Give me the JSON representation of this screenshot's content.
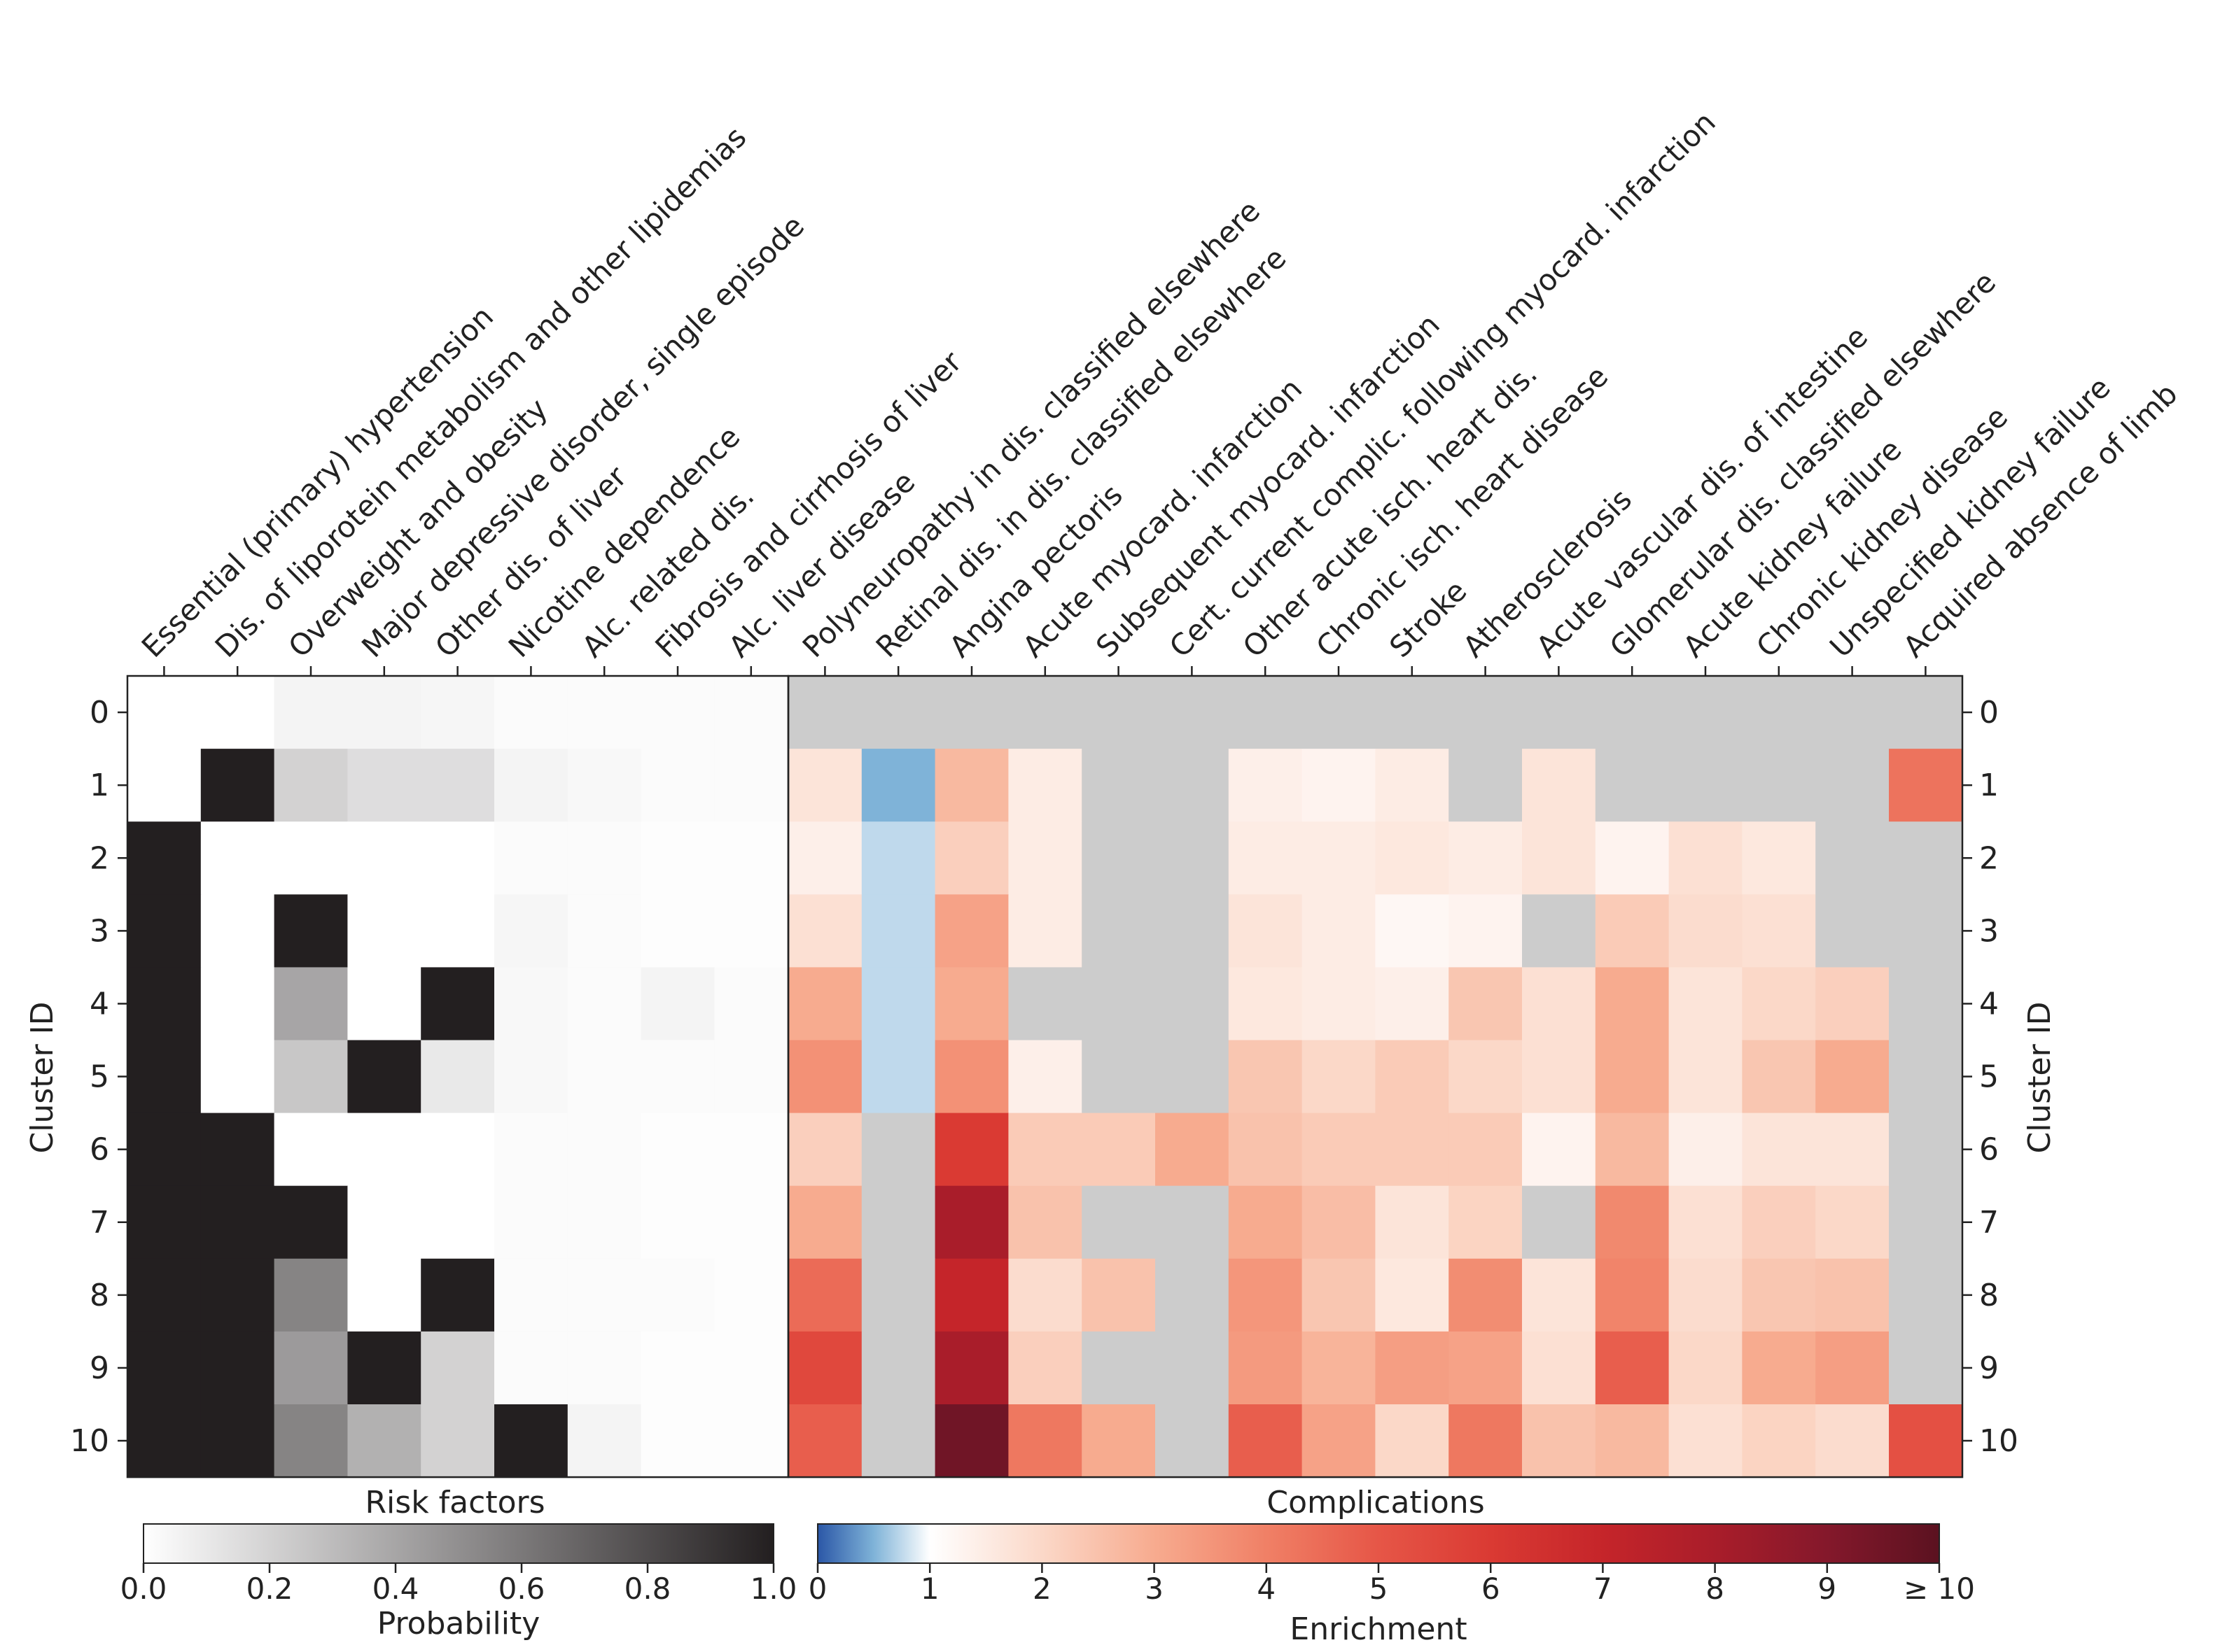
{
  "chart_data": {
    "type": "heatmap",
    "y_axis_label_left": "Cluster ID",
    "y_axis_label_right": "Cluster ID",
    "rows": [
      "0",
      "1",
      "2",
      "3",
      "4",
      "5",
      "6",
      "7",
      "8",
      "9",
      "10"
    ],
    "risk_factors": {
      "title": "Risk factors",
      "colorbar_label": "Probability",
      "colorbar_range": [
        0,
        1
      ],
      "colorbar_ticks": [
        "0.0",
        "0.2",
        "0.4",
        "0.6",
        "0.8",
        "1.0"
      ],
      "colorbar_colors": [
        "#ffffff",
        "#231f20"
      ],
      "columns": [
        "Essential (primary) hypertension",
        "Dis. of liporotein metabolism and other lipidemias",
        "Overweight and obesity",
        "Major depressive disorder, single episode",
        "Other dis. of liver",
        "Nicotine dependence",
        "Alc. related dis.",
        "Fibrosis and cirrhosis of liver",
        "Alc. liver disease"
      ],
      "values": [
        [
          0,
          0,
          0.05,
          0.05,
          0.04,
          0.02,
          0.02,
          0.02,
          0.02
        ],
        [
          0,
          1,
          0.2,
          0.15,
          0.15,
          0.05,
          0.03,
          0.02,
          0.02
        ],
        [
          1,
          0,
          0,
          0,
          0,
          0.02,
          0.02,
          0.01,
          0.01
        ],
        [
          1,
          0,
          1,
          0,
          0,
          0.04,
          0.02,
          0.01,
          0.01
        ],
        [
          1,
          0,
          0.4,
          0,
          1,
          0.03,
          0.02,
          0.05,
          0.02
        ],
        [
          1,
          0,
          0.25,
          1,
          0.1,
          0.03,
          0.02,
          0.02,
          0.02
        ],
        [
          1,
          1,
          0,
          0,
          0,
          0.02,
          0.02,
          0.01,
          0.01
        ],
        [
          1,
          1,
          1,
          0,
          0,
          0.02,
          0.02,
          0.01,
          0.01
        ],
        [
          1,
          1,
          0.55,
          0,
          1,
          0.02,
          0.02,
          0.02,
          0.01
        ],
        [
          1,
          1,
          0.45,
          1,
          0.2,
          0.02,
          0.02,
          0.01,
          0.01
        ],
        [
          1,
          1,
          0.55,
          0.35,
          0.2,
          1,
          0.05,
          0.01,
          0.01
        ]
      ]
    },
    "complications": {
      "title": "Complications",
      "colorbar_label": "Enrichment",
      "colorbar_range": [
        0,
        10
      ],
      "colorbar_ticks": [
        "0",
        "1",
        "2",
        "3",
        "4",
        "5",
        "6",
        "7",
        "8",
        "9",
        "≥ 10"
      ],
      "missing_color": "#cccccc",
      "colorbar_stops": [
        {
          "v": 0,
          "c": "#2b57a7"
        },
        {
          "v": 0.5,
          "c": "#7fb3d8"
        },
        {
          "v": 1,
          "c": "#ffffff"
        },
        {
          "v": 2,
          "c": "#fbd8c8"
        },
        {
          "v": 3,
          "c": "#f7ab8f"
        },
        {
          "v": 4,
          "c": "#f08066"
        },
        {
          "v": 5,
          "c": "#e65647"
        },
        {
          "v": 6,
          "c": "#da3a33"
        },
        {
          "v": 7,
          "c": "#c5252a"
        },
        {
          "v": 8,
          "c": "#a91d2a"
        },
        {
          "v": 9,
          "c": "#84182b"
        },
        {
          "v": 10,
          "c": "#5b1220"
        }
      ],
      "columns": [
        "Polyneuropathy in dis. classified elsewhere",
        "Retinal dis. in dis. classified elsewhere",
        "Angina pectoris",
        "Acute myocard. infarction",
        "Subsequent myocard. infarction",
        "Cert. current complic. following myocard. infarction",
        "Other acute isch. heart dis.",
        "Chronic isch. heart disease",
        "Stroke",
        "Atherosclerosis",
        "Acute vascular dis. of intestine",
        "Glomerular dis. classified elsewhere",
        "Acute kidney failure",
        "Chronic kidney disease",
        "Unspecified kidney failure",
        "Acquired absence of limb"
      ],
      "values": [
        [
          null,
          null,
          null,
          null,
          null,
          null,
          null,
          null,
          null,
          null,
          null,
          null,
          null,
          null,
          null,
          null
        ],
        [
          1.7,
          0.5,
          2.7,
          1.5,
          null,
          null,
          1.4,
          1.3,
          1.5,
          null,
          1.7,
          null,
          null,
          null,
          null,
          4.3
        ],
        [
          1.4,
          0.75,
          2.2,
          1.5,
          null,
          null,
          1.5,
          1.5,
          1.6,
          1.5,
          1.7,
          1.3,
          1.8,
          1.6,
          null,
          null
        ],
        [
          1.8,
          0.75,
          3.2,
          1.5,
          null,
          null,
          1.7,
          1.5,
          1.2,
          1.3,
          null,
          2.3,
          1.9,
          1.8,
          null,
          null
        ],
        [
          3.0,
          0.75,
          3.0,
          null,
          null,
          null,
          1.6,
          1.5,
          1.4,
          2.4,
          1.8,
          3.0,
          1.7,
          2.0,
          2.2,
          null
        ],
        [
          3.6,
          0.75,
          3.6,
          1.4,
          null,
          null,
          2.4,
          2.0,
          2.3,
          2.0,
          1.8,
          3.0,
          1.7,
          2.4,
          3.0,
          null
        ],
        [
          2.2,
          null,
          6.0,
          2.3,
          2.3,
          3.0,
          2.5,
          2.3,
          2.3,
          2.3,
          1.3,
          2.7,
          1.4,
          1.7,
          1.7,
          null
        ],
        [
          3.0,
          null,
          8.0,
          2.5,
          null,
          null,
          3.0,
          2.6,
          1.7,
          2.1,
          null,
          3.8,
          1.8,
          2.2,
          2.0,
          null
        ],
        [
          4.5,
          null,
          7.0,
          1.9,
          2.5,
          null,
          3.5,
          2.4,
          1.6,
          3.7,
          1.7,
          3.9,
          1.9,
          2.4,
          2.5,
          null
        ],
        [
          5.5,
          null,
          8.0,
          2.2,
          null,
          null,
          3.4,
          2.8,
          3.3,
          3.2,
          1.8,
          4.8,
          2.0,
          3.0,
          3.3,
          null
        ],
        [
          4.8,
          null,
          9.5,
          4.2,
          3.0,
          null,
          4.8,
          3.2,
          2.0,
          4.2,
          2.5,
          2.7,
          1.8,
          2.1,
          1.9,
          5.2
        ]
      ]
    }
  }
}
